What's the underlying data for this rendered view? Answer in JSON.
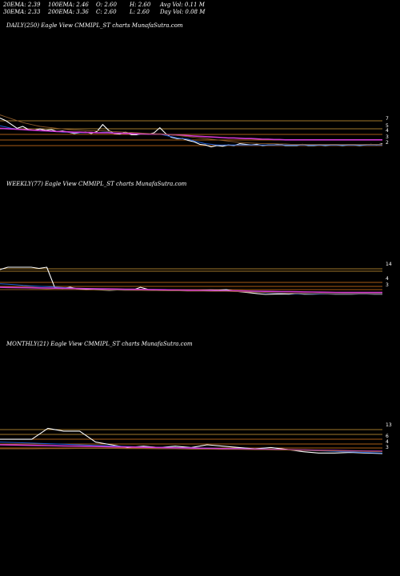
{
  "stats": {
    "row1": [
      "20EMA: 2.39",
      "100EMA: 2.46",
      "O: 2.60",
      "H: 2.60",
      "Avg Vol: 0.11 M"
    ],
    "row2": [
      "30EMA: 2.33",
      "200EMA: 3.36",
      "C: 2.60",
      "L: 2.60",
      "Day Vol: 0.08 M"
    ]
  },
  "colors": {
    "background": "#000000",
    "price": "#ffffff",
    "ema_blue": "#1f5fd6",
    "ema_magenta": "#d23ad2",
    "ema_brown": "#8a5a2a",
    "ema_gold": "#d4a13c",
    "level_orange": "#e07b1e"
  },
  "chart_data": [
    {
      "type": "line",
      "title": "DAILY(250) Eagle   View  CMMIPL_ST charts MunafaSutra.com",
      "y_ticks": [
        "7",
        "5",
        "4",
        "3",
        "2"
      ],
      "levels": [
        7,
        5,
        4,
        3,
        2
      ],
      "series": [
        {
          "role": "price",
          "values": [
            6.8,
            6.4,
            5.8,
            5.2,
            5.5,
            5.0,
            4.9,
            5.1,
            4.9,
            5.0,
            4.7,
            4.8,
            4.6,
            4.4,
            4.5,
            4.6,
            4.4,
            4.7,
            5.8,
            4.9,
            4.4,
            4.3,
            4.6,
            4.2,
            4.2,
            4.4,
            4.3,
            4.5,
            5.3,
            4.4,
            3.8,
            3.6,
            3.6,
            3.3,
            3.1,
            2.7,
            2.6,
            2.3,
            2.5,
            2.4,
            2.6,
            2.5,
            2.8,
            2.7,
            2.6,
            2.7,
            2.5,
            2.6,
            2.6,
            2.7,
            2.5,
            2.5,
            2.5,
            2.7,
            2.5,
            2.5,
            2.6,
            2.5,
            2.6,
            2.6,
            2.5,
            2.6,
            2.6,
            2.5,
            2.6,
            2.7,
            2.6,
            2.8
          ]
        },
        {
          "role": "ema_blue",
          "values": [
            5.6,
            5.4,
            5.2,
            5.1,
            5.0,
            4.9,
            4.9,
            4.8,
            4.8,
            4.7,
            4.7,
            4.6,
            4.6,
            4.5,
            4.5,
            4.5,
            4.5,
            4.5,
            4.6,
            4.6,
            4.5,
            4.4,
            4.4,
            4.4,
            4.3,
            4.3,
            4.3,
            4.3,
            4.3,
            4.1,
            3.9,
            3.7,
            3.6,
            3.5,
            3.2,
            3.0,
            2.8,
            2.7,
            2.6,
            2.6,
            2.6,
            2.6,
            2.6,
            2.6,
            2.6,
            2.6,
            2.6,
            2.6,
            2.6,
            2.6,
            2.6,
            2.6,
            2.6,
            2.6,
            2.6,
            2.6,
            2.6,
            2.6,
            2.6,
            2.6,
            2.6,
            2.6,
            2.6,
            2.6,
            2.6,
            2.6,
            2.6,
            2.6
          ]
        },
        {
          "role": "ema_magenta",
          "values": [
            5.2,
            5.15,
            5.1,
            5.05,
            5.0,
            4.95,
            4.9,
            4.85,
            4.8,
            4.75,
            4.7,
            4.7,
            4.65,
            4.6,
            4.6,
            4.55,
            4.55,
            4.5,
            4.5,
            4.5,
            4.45,
            4.45,
            4.4,
            4.4,
            4.35,
            4.35,
            4.3,
            4.3,
            4.3,
            4.25,
            4.2,
            4.15,
            4.1,
            4.05,
            4.0,
            3.95,
            3.9,
            3.85,
            3.8,
            3.75,
            3.7,
            3.7,
            3.65,
            3.6,
            3.6,
            3.55,
            3.5,
            3.5,
            3.45,
            3.45,
            3.4,
            3.4,
            3.4,
            3.4,
            3.4,
            3.4,
            3.4,
            3.4,
            3.4,
            3.4,
            3.4,
            3.4,
            3.4,
            3.4,
            3.4,
            3.4,
            3.4,
            3.4
          ]
        },
        {
          "role": "ema_brown",
          "values": [
            7.3,
            7.0,
            6.7,
            6.4,
            6.1,
            5.9,
            5.7,
            5.5,
            5.4,
            5.3,
            5.2,
            5.1,
            5.0,
            4.95,
            4.9,
            4.85,
            4.8,
            4.8,
            4.8,
            4.75,
            4.7,
            4.65,
            4.6,
            4.55,
            4.5,
            4.45,
            4.4,
            4.35,
            4.3,
            4.25,
            4.2,
            4.1,
            4.0,
            3.9,
            3.8,
            3.7,
            3.6,
            3.5,
            3.4,
            3.3,
            3.2,
            3.1,
            3.0,
            2.95,
            2.9,
            2.85,
            2.8,
            2.8,
            2.8,
            2.75,
            2.75,
            2.7,
            2.7,
            2.7,
            2.7,
            2.7,
            2.7,
            2.7,
            2.7,
            2.7,
            2.7,
            2.7,
            2.7,
            2.7,
            2.7,
            2.7,
            2.7,
            2.7
          ]
        }
      ]
    },
    {
      "type": "line",
      "title": "WEEKLY(77) Eagle   View  CMMIPL_ST charts MunafaSutra.com",
      "y_ticks": [
        "14",
        "4",
        "3"
      ],
      "levels": [
        14,
        13,
        5,
        4,
        3
      ],
      "series": [
        {
          "role": "price",
          "values": [
            13,
            14,
            14,
            14,
            14,
            13.5,
            14,
            5.5,
            5,
            5.5,
            4.8,
            4.5,
            4.6,
            4.4,
            4.2,
            4.4,
            4.5,
            4.3,
            5.5,
            4.6,
            4.3,
            4.4,
            4.2,
            4.1,
            4.1,
            4.2,
            4.3,
            4.4,
            4.3,
            4.5,
            3.9,
            3.5,
            3.2,
            2.8,
            2.5,
            2.6,
            2.7,
            2.6,
            2.8,
            2.6,
            2.6,
            2.7,
            2.7,
            2.6,
            2.6,
            2.6,
            2.7,
            2.7,
            2.6,
            2.6
          ]
        },
        {
          "role": "ema_blue",
          "values": [
            7,
            6.8,
            6.6,
            6.3,
            6.1,
            5.9,
            5.8,
            5.6,
            5.4,
            5.2,
            5.0,
            4.9,
            4.8,
            4.7,
            4.6,
            4.5,
            4.5,
            4.5,
            4.6,
            4.5,
            4.4,
            4.4,
            4.3,
            4.3,
            4.2,
            4.2,
            4.2,
            4.2,
            4.2,
            4.1,
            4.0,
            3.8,
            3.6,
            3.4,
            3.2,
            3.1,
            3.0,
            2.9,
            2.8,
            2.8,
            2.7,
            2.7,
            2.7,
            2.7,
            2.7,
            2.7,
            2.7,
            2.7,
            2.7,
            2.7
          ]
        },
        {
          "role": "ema_magenta",
          "values": [
            5.5,
            5.45,
            5.4,
            5.35,
            5.3,
            5.25,
            5.2,
            5.15,
            5.1,
            5.05,
            5.0,
            4.95,
            4.9,
            4.85,
            4.8,
            4.75,
            4.7,
            4.65,
            4.6,
            4.55,
            4.5,
            4.45,
            4.4,
            4.35,
            4.3,
            4.25,
            4.2,
            4.15,
            4.1,
            4.05,
            4.0,
            3.95,
            3.9,
            3.85,
            3.8,
            3.75,
            3.7,
            3.65,
            3.6,
            3.55,
            3.5,
            3.45,
            3.4,
            3.35,
            3.3,
            3.3,
            3.3,
            3.3,
            3.3,
            3.3
          ]
        },
        {
          "role": "ema_brown",
          "values": [
            4.5,
            4.5,
            4.5,
            4.5,
            4.6,
            4.6,
            4.7,
            4.6,
            4.6,
            4.5,
            4.5,
            4.4,
            4.4,
            4.3,
            4.3,
            4.3,
            4.2,
            4.2,
            4.2,
            4.1,
            4.1,
            4.0,
            4.0,
            4.0,
            3.9,
            3.9,
            3.9,
            3.8,
            3.8,
            3.8,
            3.7,
            3.6,
            3.5,
            3.4,
            3.3,
            3.2,
            3.1,
            3.0,
            3.0,
            2.9,
            2.9,
            2.9,
            2.8,
            2.8,
            2.8,
            2.8,
            2.8,
            2.8,
            2.8,
            2.8
          ]
        }
      ]
    },
    {
      "type": "line",
      "title": "MONTHLY(21) Eagle   View  CMMIPL_ST charts MunafaSutra.com",
      "y_ticks": [
        "13",
        "6",
        "4",
        "3"
      ],
      "levels": [
        13,
        9,
        6,
        4,
        3
      ],
      "series": [
        {
          "role": "price",
          "values": [
            8,
            8,
            8,
            12,
            11,
            11,
            7,
            6,
            5,
            5.5,
            5,
            5.5,
            5,
            6,
            5.5,
            5,
            4.5,
            5,
            4.3,
            3.5,
            3,
            3,
            3.2,
            3,
            2.8
          ]
        },
        {
          "role": "ema_blue",
          "values": [
            7,
            6.8,
            6.6,
            6.4,
            6.2,
            6.0,
            5.8,
            5.6,
            5.4,
            5.2,
            5.1,
            5.0,
            4.9,
            4.8,
            4.7,
            4.6,
            4.5,
            4.4,
            4.2,
            4.0,
            3.8,
            3.6,
            3.4,
            3.2,
            3.0
          ]
        },
        {
          "role": "ema_magenta",
          "values": [
            6,
            5.9,
            5.8,
            5.7,
            5.6,
            5.5,
            5.4,
            5.3,
            5.2,
            5.1,
            5.0,
            4.9,
            4.8,
            4.7,
            4.6,
            4.5,
            4.4,
            4.3,
            4.2,
            4.1,
            4.0,
            3.9,
            3.8,
            3.7,
            3.6
          ]
        },
        {
          "role": "ema_brown",
          "values": [
            4.5,
            4.5,
            4.5,
            4.6,
            4.6,
            4.7,
            4.7,
            4.7,
            4.6,
            4.6,
            4.5,
            4.5,
            4.4,
            4.4,
            4.3,
            4.3,
            4.2,
            4.2,
            4.1,
            4.0,
            3.9,
            3.8,
            3.7,
            3.6,
            3.5
          ]
        }
      ]
    }
  ]
}
